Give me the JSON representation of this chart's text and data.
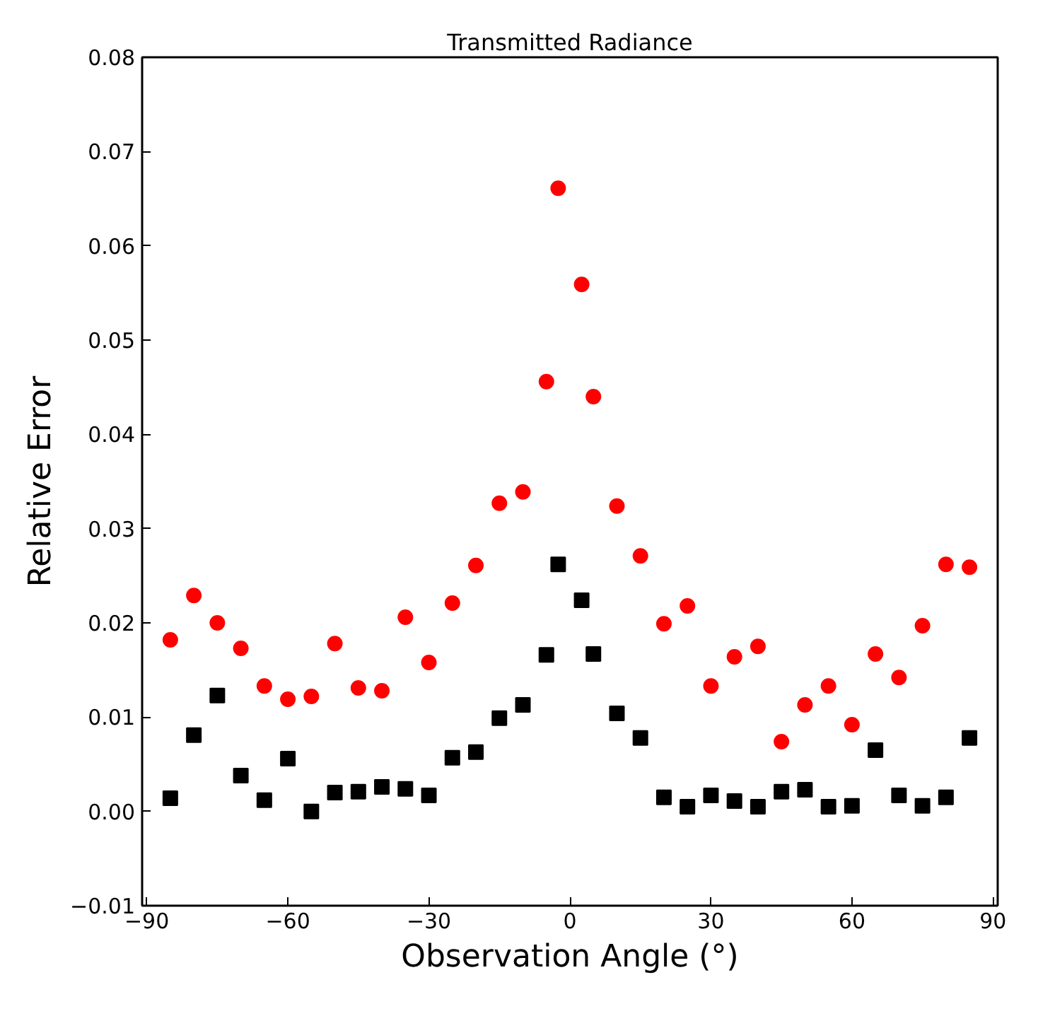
{
  "chart_data": {
    "type": "scatter",
    "title": "Transmitted Radiance",
    "xlabel": "Observation Angle (°)",
    "ylabel": "Relative Error",
    "x": [
      -85,
      -80,
      -75,
      -70,
      -65,
      -60,
      -55,
      -50,
      -45,
      -40,
      -35,
      -30,
      -25,
      -20,
      -15,
      -10,
      -5,
      -2.5,
      2.5,
      5,
      10,
      15,
      20,
      25,
      30,
      35,
      40,
      45,
      50,
      55,
      60,
      65,
      70,
      75,
      80,
      85
    ],
    "series": [
      {
        "color": "#ff0000",
        "marker": "circle",
        "values": [
          0.0182,
          0.0229,
          0.02,
          0.0173,
          0.0133,
          0.0119,
          0.0122,
          0.0178,
          0.0131,
          0.0128,
          0.0206,
          0.0158,
          0.0221,
          0.0261,
          0.0327,
          0.0339,
          0.0456,
          0.0661,
          0.0559,
          0.044,
          0.0324,
          0.0271,
          0.0199,
          0.0218,
          0.0133,
          0.0164,
          0.0175,
          0.0074,
          0.0113,
          0.0133,
          0.0092,
          0.0167,
          0.0142,
          0.0197,
          0.0262,
          0.0259
        ]
      },
      {
        "color": "#000000",
        "marker": "square",
        "values": [
          0.0014,
          0.0081,
          0.0123,
          0.0038,
          0.0012,
          0.0056,
          0.0,
          0.002,
          0.0021,
          0.0026,
          0.0024,
          0.0017,
          0.0057,
          0.0063,
          0.0099,
          0.0113,
          0.0166,
          0.0262,
          0.0224,
          0.0167,
          0.0104,
          0.0078,
          0.0015,
          0.0005,
          0.0017,
          0.0011,
          0.0005,
          0.0021,
          0.0023,
          0.0005,
          0.0006,
          0.0065,
          0.0017,
          0.0006,
          0.0015,
          0.0078
        ]
      }
    ],
    "xlim": [
      -91,
      91
    ],
    "xticks": [
      {
        "value": -90,
        "label": "−90"
      },
      {
        "value": -60,
        "label": "−60"
      },
      {
        "value": -30,
        "label": "−30"
      },
      0,
      30,
      60,
      90
    ],
    "ylim": [
      -0.01,
      0.08
    ],
    "yticks": [
      {
        "value": -0.01,
        "label": "−0.01"
      },
      {
        "value": 0,
        "label": "0.00"
      },
      0.01,
      0.02,
      0.03,
      0.04,
      0.05,
      0.06,
      0.07,
      0.08
    ],
    "grid": false
  }
}
